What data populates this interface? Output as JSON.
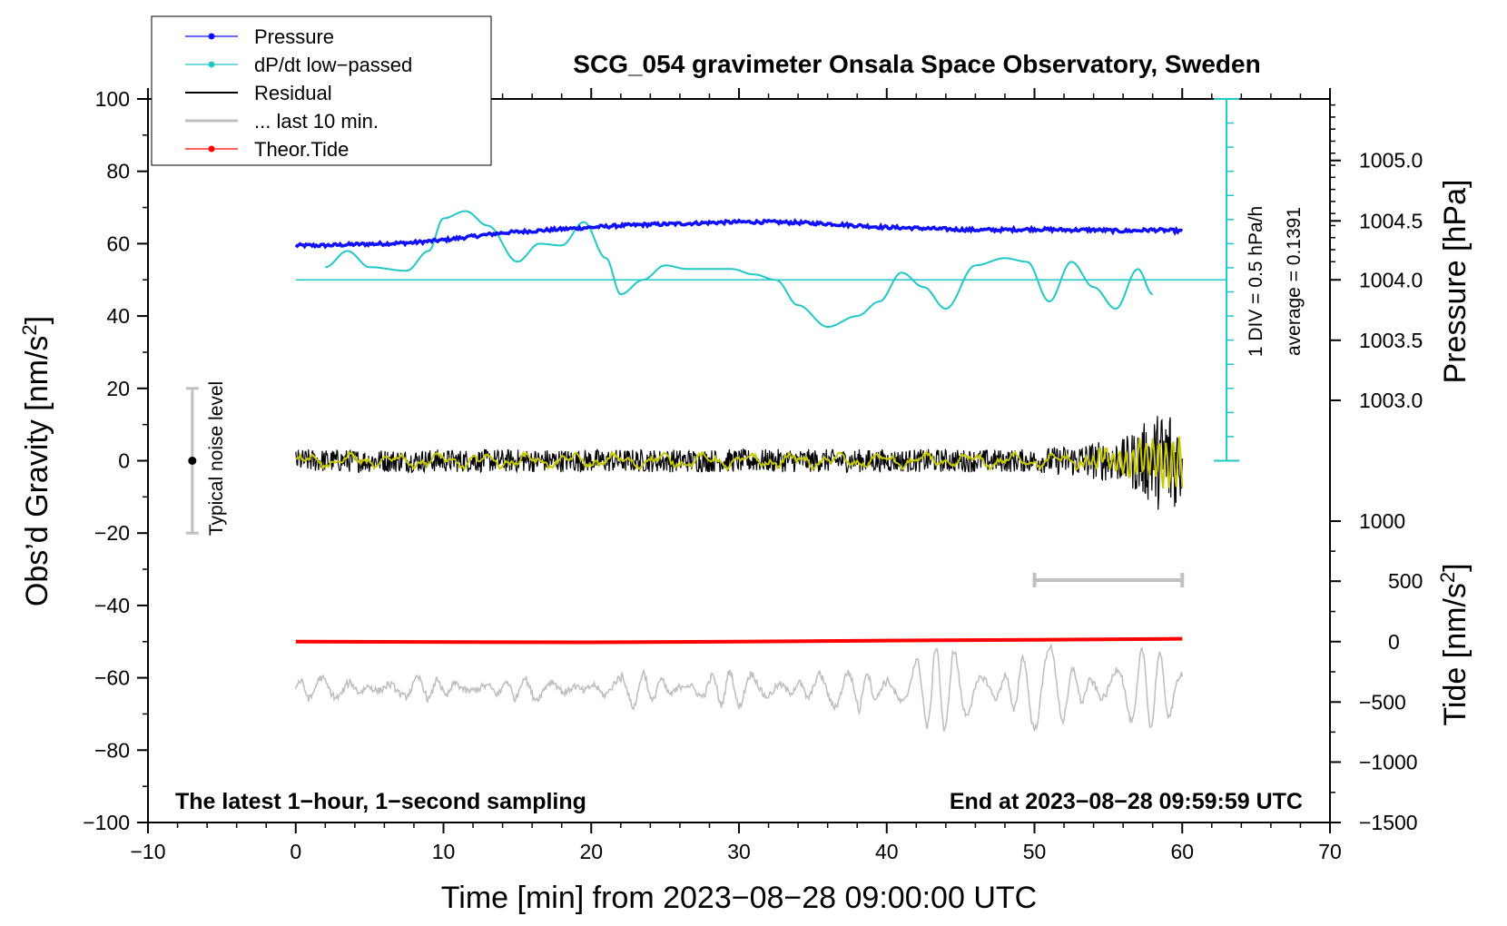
{
  "chart_data": {
    "type": "line",
    "title": "SCG_054 gravimeter Onsala Space Observatory, Sweden",
    "xlabel": "Time [min] from 2023−08−28 09:00:00 UTC",
    "ylabel": "Obs’d Gravity [nm/s",
    "ylabel_sup": "2",
    "ylabel_end": "]",
    "y2label_pressure": "Pressure [hPa]",
    "y2label_tide": "Tide [nm/s",
    "y2label_tide_sup": "2",
    "y2label_tide_end": "]",
    "xlim": [
      -10,
      70
    ],
    "ylim": [
      -100,
      100
    ],
    "x_ticks": [
      -10,
      0,
      10,
      20,
      30,
      40,
      50,
      60,
      70
    ],
    "x_tick_labels": [
      "−10",
      "0",
      "10",
      "20",
      "30",
      "40",
      "50",
      "60",
      "70"
    ],
    "y_ticks": [
      -100,
      -80,
      -60,
      -40,
      -20,
      0,
      20,
      40,
      60,
      80,
      100
    ],
    "y_tick_labels": [
      "−100",
      "−80",
      "−60",
      "−40",
      "−20",
      "0",
      "20",
      "40",
      "60",
      "80",
      "100"
    ],
    "pressure_axis": {
      "ticks": [
        1005.0,
        1004.5,
        1004.0,
        1003.5,
        1003.0
      ],
      "labels": [
        "1005.0",
        "1004.5",
        "1004.0",
        "1003.5",
        "1003.0"
      ],
      "gravity_equiv": [
        83,
        66.3,
        50,
        33.3,
        16.7
      ]
    },
    "tide_axis": {
      "ticks": [
        1000,
        500,
        0,
        -500,
        -1000,
        -1500
      ],
      "labels": [
        "1000",
        "500",
        "0",
        "−500",
        "−1000",
        "−1500"
      ],
      "gravity_equiv": [
        -16.7,
        -33.3,
        -50,
        -66.7,
        -83.3,
        -100
      ]
    },
    "legend": [
      {
        "label": "Pressure",
        "color": "#1010ff",
        "marker": true
      },
      {
        "label": "dP/dt low−passed",
        "color": "#20c8c8",
        "marker": true
      },
      {
        "label": "Residual",
        "color": "#000000",
        "marker": false
      },
      {
        "label": "... last 10 min.",
        "color": "#c0c0c0",
        "marker": false
      },
      {
        "label": "Theor.Tide",
        "color": "#ff0000",
        "marker": true
      }
    ],
    "series": [
      {
        "name": "Pressure",
        "color": "#1010ff",
        "x": [
          0,
          2,
          4,
          6,
          8,
          10,
          12,
          14,
          16,
          18,
          20,
          22,
          24,
          26,
          28,
          30,
          32,
          34,
          36,
          38,
          40,
          42,
          44,
          46,
          48,
          50,
          52,
          54,
          56,
          58,
          60
        ],
        "y": [
          59.5,
          59.5,
          59.8,
          60.0,
          60.3,
          61.0,
          62.0,
          63.0,
          63.5,
          64.0,
          64.5,
          65.0,
          65.3,
          65.5,
          65.8,
          66.0,
          66.0,
          65.8,
          65.5,
          65.0,
          64.5,
          64.3,
          64.0,
          63.8,
          63.8,
          64.0,
          63.8,
          63.8,
          63.5,
          63.8,
          63.5
        ]
      },
      {
        "name": "dP/dt low−passed",
        "color": "#20c8c8",
        "x": [
          2,
          3.5,
          5,
          7.5,
          9,
          10,
          11.5,
          13,
          15,
          16.5,
          18,
          19.5,
          21,
          22,
          23.5,
          25,
          26.5,
          28,
          29.5,
          31,
          32.5,
          34,
          36,
          38,
          39.5,
          41,
          42.5,
          44,
          46,
          48,
          49.5,
          51,
          52.5,
          54,
          55.5,
          57,
          58
        ],
        "y": [
          53.5,
          58,
          53.5,
          52.5,
          58,
          67,
          69,
          65,
          55,
          60,
          59.5,
          66,
          56,
          46,
          50,
          54,
          53,
          53,
          53,
          51.5,
          50,
          43,
          37,
          40,
          44,
          52,
          48,
          42,
          54,
          56,
          55,
          44,
          55,
          48,
          42,
          53,
          46
        ]
      },
      {
        "name": "Residual",
        "color": "#000000",
        "x_range": [
          0,
          60
        ],
        "baseline": 0,
        "noise_amplitude_start": 4,
        "noise_amplitude_end": 20
      },
      {
        "name": "Residual smoothed",
        "color": "#c8c800",
        "x_range": [
          0,
          60
        ],
        "baseline": 0
      },
      {
        "name": "... last 10 min.",
        "color": "#c0c0c0",
        "x_range": [
          0,
          60
        ],
        "baseline": -63,
        "oscillation_min": -81,
        "oscillation_max": -41
      },
      {
        "name": "Theor.Tide",
        "color": "#ff0000",
        "x": [
          0,
          20,
          30,
          40,
          50,
          60
        ],
        "y": [
          -50,
          -50.2,
          -50,
          -49.7,
          -49.5,
          -49.2
        ]
      }
    ],
    "typical_noise": {
      "x": -7,
      "y": 0,
      "y_low": -20,
      "y_high": 20,
      "label": "Typical noise level"
    },
    "last10_bar": {
      "x_start": 50,
      "x_end": 60,
      "y": -33
    },
    "scale_bar": {
      "x": 63,
      "y_low": 0,
      "y_high": 100,
      "label_1": "1 DIV = 0.5 hPa/h",
      "label_2": "average = 0.1391"
    },
    "note_left": "The latest 1−hour, 1−second sampling",
    "note_right": "End at 2023−08−28 09:59:59 UTC"
  }
}
